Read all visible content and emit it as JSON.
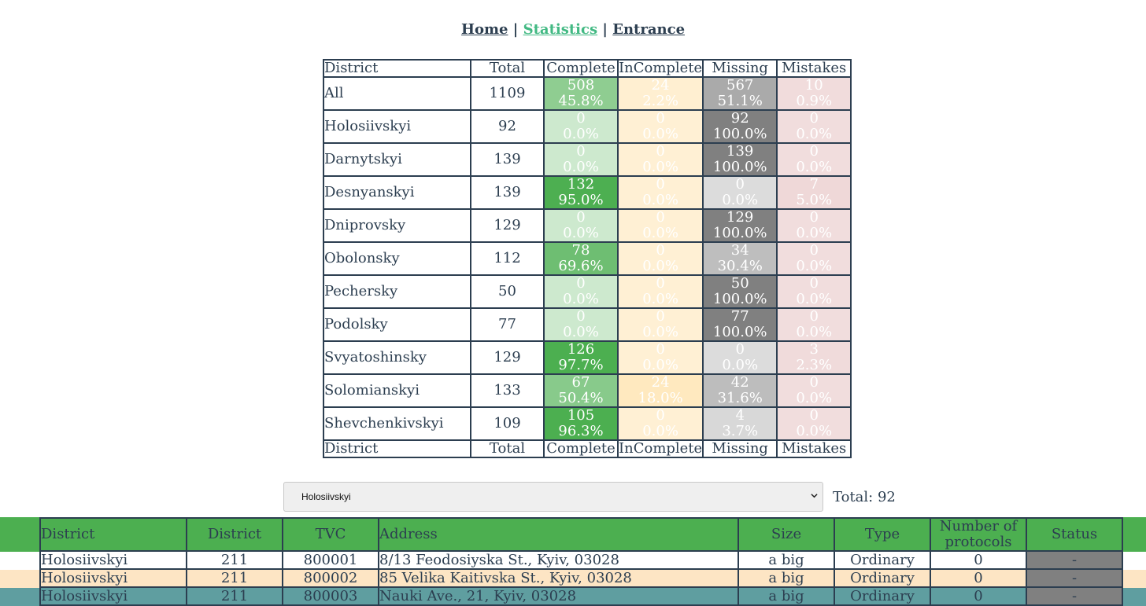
{
  "nav": {
    "home": "Home",
    "statistics": "Statistics",
    "entrance": "Entrance",
    "separator": "|"
  },
  "stats": {
    "headers": [
      "District",
      "Total",
      "Complete",
      "InComplete",
      "Missing",
      "Mistakes"
    ],
    "rows": [
      {
        "district": "All",
        "total": "1109",
        "complete": [
          "508",
          "45.8%"
        ],
        "incomplete": [
          "24",
          "2.2%"
        ],
        "missing": [
          "567",
          "51.1%"
        ],
        "mistakes": [
          "10",
          "0.9%"
        ]
      },
      {
        "district": "Holosiivskyi",
        "total": "92",
        "complete": [
          "0",
          "0.0%"
        ],
        "incomplete": [
          "0",
          "0.0%"
        ],
        "missing": [
          "92",
          "100.0%"
        ],
        "mistakes": [
          "0",
          "0.0%"
        ]
      },
      {
        "district": "Darnytskyi",
        "total": "139",
        "complete": [
          "0",
          "0.0%"
        ],
        "incomplete": [
          "0",
          "0.0%"
        ],
        "missing": [
          "139",
          "100.0%"
        ],
        "mistakes": [
          "0",
          "0.0%"
        ]
      },
      {
        "district": "Desnyanskyi",
        "total": "139",
        "complete": [
          "132",
          "95.0%"
        ],
        "incomplete": [
          "0",
          "0.0%"
        ],
        "missing": [
          "0",
          "0.0%"
        ],
        "mistakes": [
          "7",
          "5.0%"
        ]
      },
      {
        "district": "Dniprovsky",
        "total": "129",
        "complete": [
          "0",
          "0.0%"
        ],
        "incomplete": [
          "0",
          "0.0%"
        ],
        "missing": [
          "129",
          "100.0%"
        ],
        "mistakes": [
          "0",
          "0.0%"
        ]
      },
      {
        "district": "Obolonsky",
        "total": "112",
        "complete": [
          "78",
          "69.6%"
        ],
        "incomplete": [
          "0",
          "0.0%"
        ],
        "missing": [
          "34",
          "30.4%"
        ],
        "mistakes": [
          "0",
          "0.0%"
        ]
      },
      {
        "district": "Pechersky",
        "total": "50",
        "complete": [
          "0",
          "0.0%"
        ],
        "incomplete": [
          "0",
          "0.0%"
        ],
        "missing": [
          "50",
          "100.0%"
        ],
        "mistakes": [
          "0",
          "0.0%"
        ]
      },
      {
        "district": "Podolsky",
        "total": "77",
        "complete": [
          "0",
          "0.0%"
        ],
        "incomplete": [
          "0",
          "0.0%"
        ],
        "missing": [
          "77",
          "100.0%"
        ],
        "mistakes": [
          "0",
          "0.0%"
        ]
      },
      {
        "district": "Svyatoshinsky",
        "total": "129",
        "complete": [
          "126",
          "97.7%"
        ],
        "incomplete": [
          "0",
          "0.0%"
        ],
        "missing": [
          "0",
          "0.0%"
        ],
        "mistakes": [
          "3",
          "2.3%"
        ]
      },
      {
        "district": "Solomianskyi",
        "total": "133",
        "complete": [
          "67",
          "50.4%"
        ],
        "incomplete": [
          "24",
          "18.0%"
        ],
        "missing": [
          "42",
          "31.6%"
        ],
        "mistakes": [
          "0",
          "0.0%"
        ]
      },
      {
        "district": "Shevchenkivskyi",
        "total": "109",
        "complete": [
          "105",
          "96.3%"
        ],
        "incomplete": [
          "0",
          "0.0%"
        ],
        "missing": [
          "4",
          "3.7%"
        ],
        "mistakes": [
          "0",
          "0.0%"
        ]
      }
    ],
    "colors": {
      "complete": "#4caf50",
      "incomplete": "#ffc966",
      "missing": "#808080",
      "mistakes": "#cd8585"
    }
  },
  "filter": {
    "selected": "Holosiivskyi",
    "total_label": "Total: 92"
  },
  "tvc_table": {
    "headers": [
      "District",
      "District",
      "TVC",
      "Address",
      "Size",
      "Type",
      "Number of protocols",
      "Status"
    ],
    "rows": [
      {
        "district": "Holosiivskyi",
        "district_no": "211",
        "tvc": "800001",
        "address": "8/13 Feodosiyska St., Kyiv, 03028",
        "size": "a big",
        "type": "Ordinary",
        "protocols": "0",
        "status": "-",
        "band": "#ffffff"
      },
      {
        "district": "Holosiivskyi",
        "district_no": "211",
        "tvc": "800002",
        "address": "85 Velika Kaitivska St., Kyiv, 03028",
        "size": "a big",
        "type": "Ordinary",
        "protocols": "0",
        "status": "-",
        "band": "#fde5c4"
      },
      {
        "district": "Holosiivskyi",
        "district_no": "211",
        "tvc": "800003",
        "address": "Nauki Ave., 21, Kyiv, 03028",
        "size": "a big",
        "type": "Ordinary",
        "protocols": "0",
        "status": "-",
        "band": "#5f9ea0"
      }
    ]
  }
}
